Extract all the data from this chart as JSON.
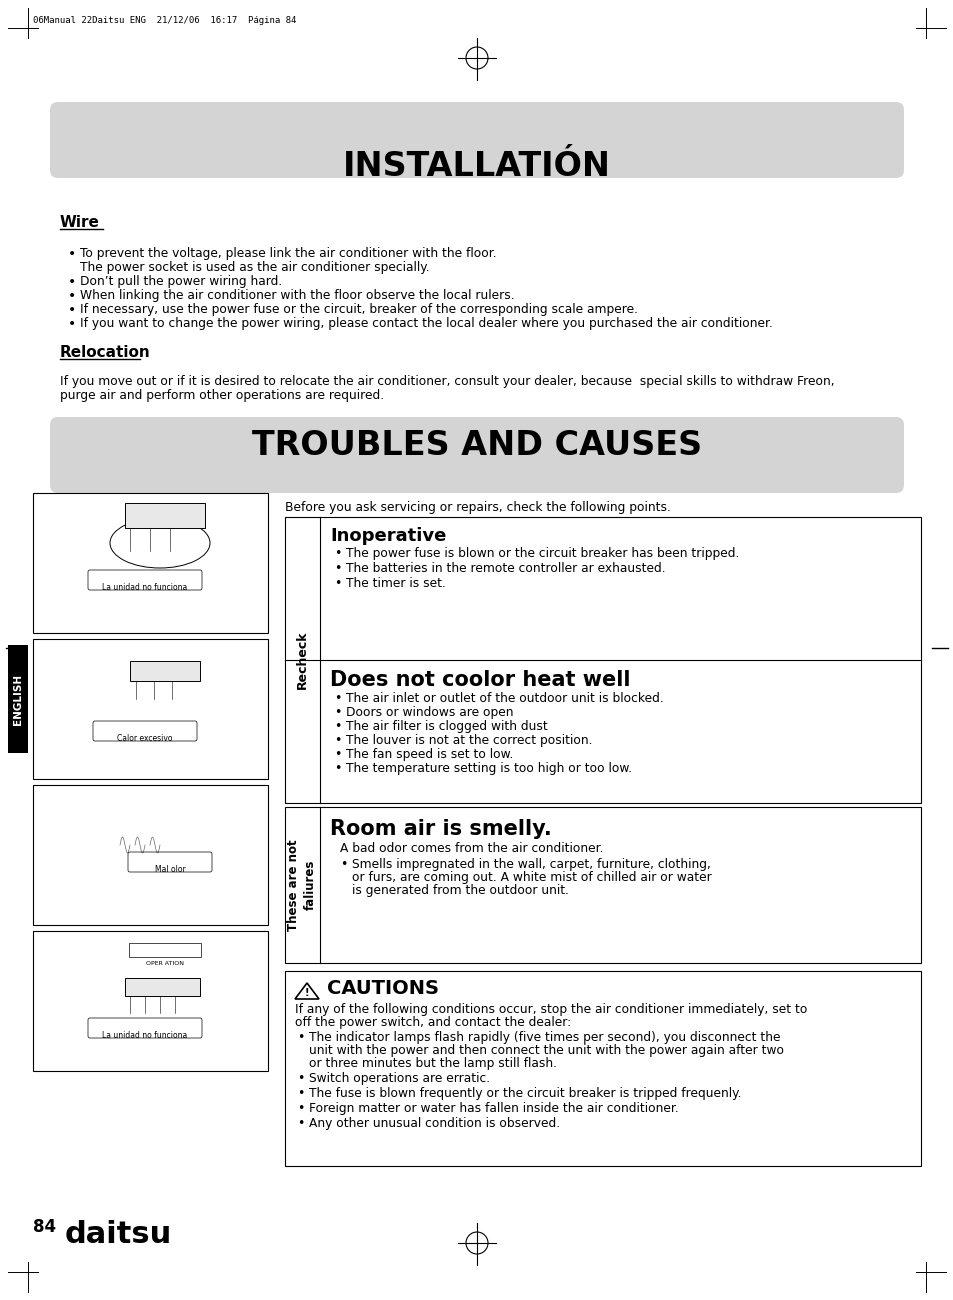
{
  "page_header": "06Manual 22Daitsu ENG  21/12/06  16:17  Página 84",
  "title_installation": "INSTALLATIÓN",
  "title_troubles": "TROUBLES AND CAUSES",
  "section_wire_title": "Wire",
  "section_wire_bullets": [
    [
      "To prevent the voltage, please link the air conditioner with the floor.",
      "The power socket is used as the air conditioner specially."
    ],
    [
      "Don’t pull the power wiring hard."
    ],
    [
      "When linking the air conditioner with the floor observe the local rulers."
    ],
    [
      "If necessary, use the power fuse or the circuit, breaker of the corresponding scale ampere."
    ],
    [
      "If you want to change the power wiring, please contact the local dealer where you purchased the air conditioner."
    ]
  ],
  "section_relocation_title": "Relocation",
  "section_relocation_lines": [
    "If you move out or if it is desired to relocate the air conditioner, consult your dealer, because  special skills to withdraw Freon,",
    "purge air and perform other operations are required."
  ],
  "troubles_intro": "Before you ask servicing or repairs, check the following points.",
  "recheck_label": "Recheck",
  "recheck_section1_title": "Inoperative",
  "recheck_section1_bullets": [
    "The power fuse is blown or the circuit breaker has been tripped.",
    "The batteries in the remote controller ar exhausted.",
    "The timer is set."
  ],
  "recheck_section2_title": "Does not coolor heat well",
  "recheck_section2_bullets": [
    "The air inlet or outlet of the outdoor unit is blocked.",
    "Doors or windows are open",
    "The air filter is clogged with dust",
    "The louver is not at the correct position.",
    "The fan speed is set to low.",
    "The temperature setting is too high or too low."
  ],
  "failures_label_lines": [
    "These are not",
    "faliures"
  ],
  "failures_section_title": "Room air is smelly.",
  "failures_section_text": "A bad odor comes from the air conditioner.",
  "failures_section_bullets": [
    [
      "Smells impregnated in the wall, carpet, furniture, clothing,",
      "or furs, are coming out. A white mist of chilled air or water",
      "is generated from the outdoor unit."
    ]
  ],
  "cautions_title": "CAUTIONS",
  "cautions_intro_lines": [
    "If any of the following conditions occur, stop the air conditioner immediately, set to",
    "off the power switch, and contact the dealer:"
  ],
  "cautions_bullets": [
    [
      "The indicator lamps flash rapidly (five times per second), you disconnect the",
      "unit with the power and then connect the unit with the power again after two",
      "or three minutes but the lamp still flash."
    ],
    [
      "Switch operations are erratic."
    ],
    [
      "The fuse is blown frequently or the circuit breaker is tripped frequenly."
    ],
    [
      "Foreign matter or water has fallen inside the air conditioner."
    ],
    [
      "Any other unusual condition is observed."
    ]
  ],
  "image_captions": [
    "La unidad no funciona",
    "Calor excesivo",
    "Mal olor",
    "La unidad no funciona"
  ],
  "page_number": "84",
  "brand": "daitsu",
  "english_label": "ENGLISH",
  "bg_color": "#ffffff",
  "header_bg": "#d4d4d4",
  "text_color": "#000000"
}
